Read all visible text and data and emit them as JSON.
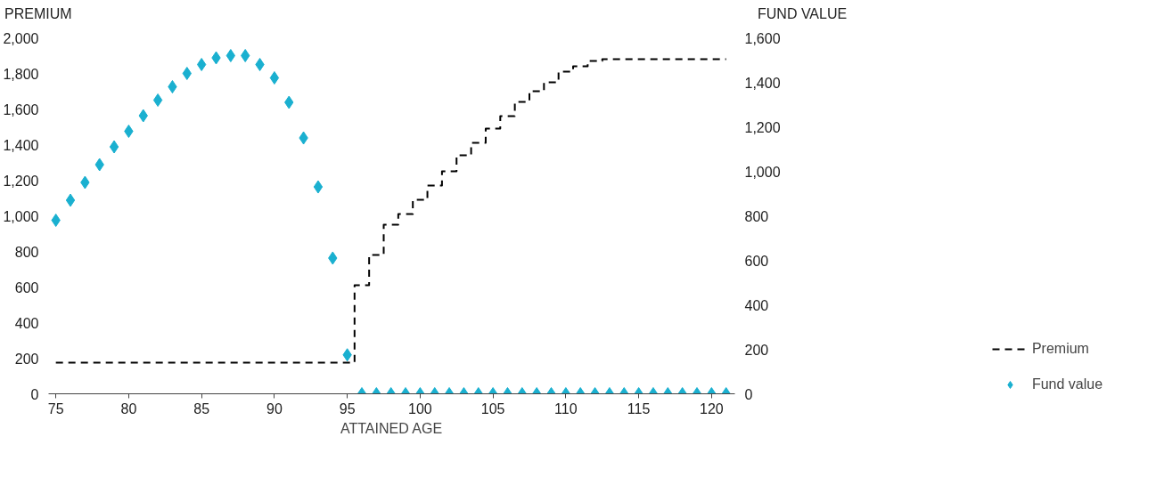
{
  "chart_data": {
    "type": "step",
    "ylabel": "PREMIUM",
    "y2label": "FUND VALUE",
    "xlabel": "ATTAINED AGE",
    "x": [
      75,
      76,
      77,
      78,
      79,
      80,
      81,
      82,
      83,
      84,
      85,
      86,
      87,
      88,
      89,
      90,
      91,
      92,
      93,
      94,
      95,
      96,
      97,
      98,
      99,
      100,
      101,
      102,
      103,
      104,
      105,
      106,
      107,
      108,
      109,
      110,
      111,
      112,
      113,
      114,
      115,
      116,
      117,
      118,
      119,
      120,
      121
    ],
    "series": [
      {
        "name": "Premium",
        "line_style": "dashed",
        "color": "#000000",
        "values": [
          175,
          175,
          175,
          175,
          175,
          175,
          175,
          175,
          175,
          175,
          175,
          175,
          175,
          175,
          175,
          175,
          175,
          175,
          175,
          175,
          175,
          610,
          780,
          950,
          1010,
          1090,
          1170,
          1250,
          1340,
          1410,
          1490,
          1560,
          1640,
          1700,
          1750,
          1810,
          1840,
          1870,
          1880,
          1880,
          1880,
          1880,
          1880,
          1880,
          1880,
          1880,
          1880
        ]
      },
      {
        "name": "Fund value",
        "type": "scatter",
        "marker": "diamond",
        "axis": "y2",
        "color": "#1ab0d0",
        "values": [
          780,
          870,
          950,
          1030,
          1110,
          1180,
          1250,
          1320,
          1380,
          1440,
          1480,
          1510,
          1520,
          1520,
          1480,
          1420,
          1310,
          1150,
          930,
          610,
          175,
          0,
          0,
          0,
          0,
          0,
          0,
          0,
          0,
          0,
          0,
          0,
          0,
          0,
          0,
          0,
          0,
          0,
          0,
          0,
          0,
          0,
          0,
          0,
          0,
          0,
          0
        ]
      }
    ],
    "xlim": [
      74.5,
      121.6
    ],
    "xticks": [
      75,
      80,
      85,
      90,
      95,
      100,
      105,
      110,
      115,
      120
    ],
    "ylim": [
      0,
      2000
    ],
    "yticks": [
      {
        "value": 0,
        "label": "0"
      },
      {
        "value": 200,
        "label": "200"
      },
      {
        "value": 400,
        "label": "400"
      },
      {
        "value": 600,
        "label": "600"
      },
      {
        "value": 800,
        "label": "800"
      },
      {
        "value": 1000,
        "label": "1,000"
      },
      {
        "value": 1200,
        "label": "1,200"
      },
      {
        "value": 1400,
        "label": "1,400"
      },
      {
        "value": 1600,
        "label": "1,600"
      },
      {
        "value": 1800,
        "label": "1,800"
      },
      {
        "value": 2000,
        "label": "2,000"
      }
    ],
    "y2lim": [
      0,
      1600
    ],
    "y2ticks": [
      {
        "value": 0,
        "label": "0"
      },
      {
        "value": 200,
        "label": "200"
      },
      {
        "value": 400,
        "label": "400"
      },
      {
        "value": 600,
        "label": "600"
      },
      {
        "value": 800,
        "label": "800"
      },
      {
        "value": 1000,
        "label": "1,000"
      },
      {
        "value": 1200,
        "label": "1,200"
      },
      {
        "value": 1400,
        "label": "1,400"
      },
      {
        "value": 1600,
        "label": "1,600"
      }
    ],
    "grid": false,
    "legend": "right"
  }
}
